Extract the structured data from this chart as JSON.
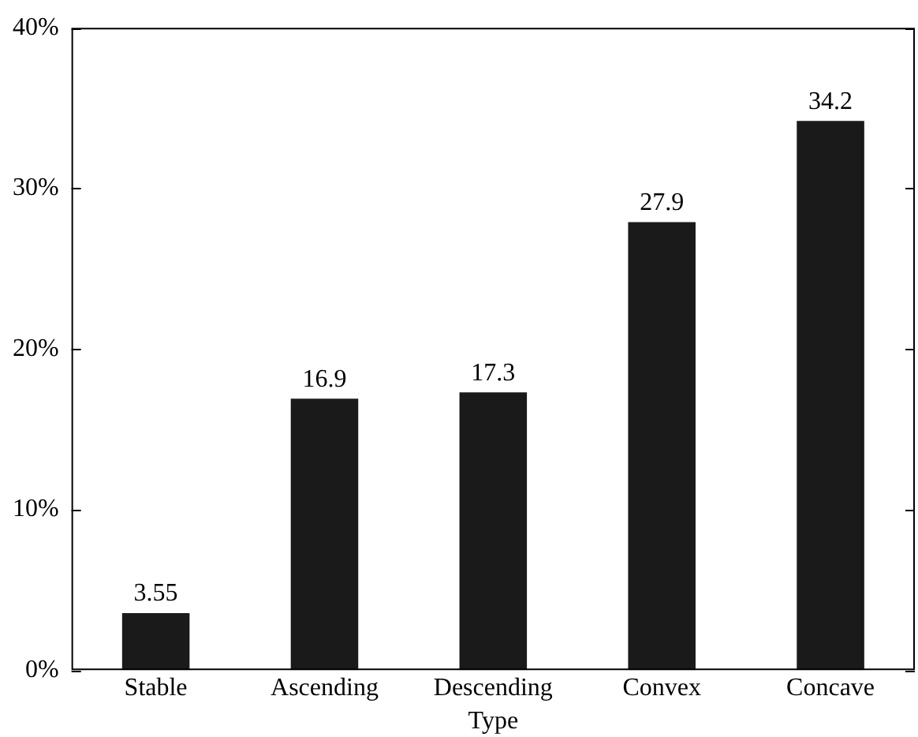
{
  "chart_data": {
    "type": "bar",
    "xlabel": "Type",
    "categories": [
      "Stable",
      "Ascending",
      "Descending",
      "Convex",
      "Concave"
    ],
    "values": [
      3.55,
      16.9,
      17.3,
      27.9,
      34.2
    ],
    "color": "#1a1a1a",
    "ylim": [
      0,
      40
    ],
    "yticks": [
      {
        "value": 0,
        "label": "0%"
      },
      {
        "value": 10,
        "label": "10%"
      },
      {
        "value": 20,
        "label": "20%"
      },
      {
        "value": 30,
        "label": "30%"
      },
      {
        "value": 40,
        "label": "40%"
      }
    ],
    "data_labels": true,
    "grid": false,
    "legend": false
  }
}
